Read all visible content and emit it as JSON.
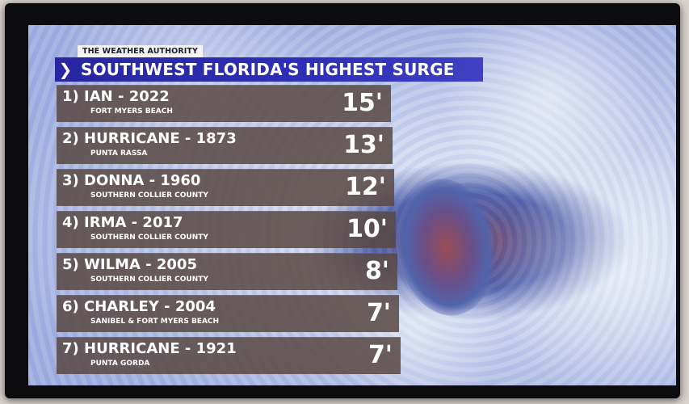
{
  "brand": "THE WEATHER AUTHORITY",
  "title": "SOUTHWEST FLORIDA'S HIGHEST SURGE",
  "chevron_icon": "chevron-right-icon",
  "colors": {
    "title_bar": "#2826a0",
    "row_background": "#584844",
    "text": "#ffffff"
  },
  "storms": [
    {
      "name": "1) IAN - 2022",
      "location": "FORT MYERS BEACH",
      "surge": "15'"
    },
    {
      "name": "2) HURRICANE - 1873",
      "location": "PUNTA RASSA",
      "surge": "13'"
    },
    {
      "name": "3) DONNA - 1960",
      "location": "SOUTHERN COLLIER COUNTY",
      "surge": "12'"
    },
    {
      "name": "4) IRMA - 2017",
      "location": "SOUTHERN COLLIER COUNTY",
      "surge": "10'"
    },
    {
      "name": "5) WILMA - 2005",
      "location": "SOUTHERN COLLIER COUNTY",
      "surge": "8'"
    },
    {
      "name": "6) CHARLEY - 2004",
      "location": "SANIBEL & FORT MYERS BEACH",
      "surge": "7'"
    },
    {
      "name": "7) HURRICANE - 1921",
      "location": "PUNTA GORDA",
      "surge": "7'"
    }
  ]
}
